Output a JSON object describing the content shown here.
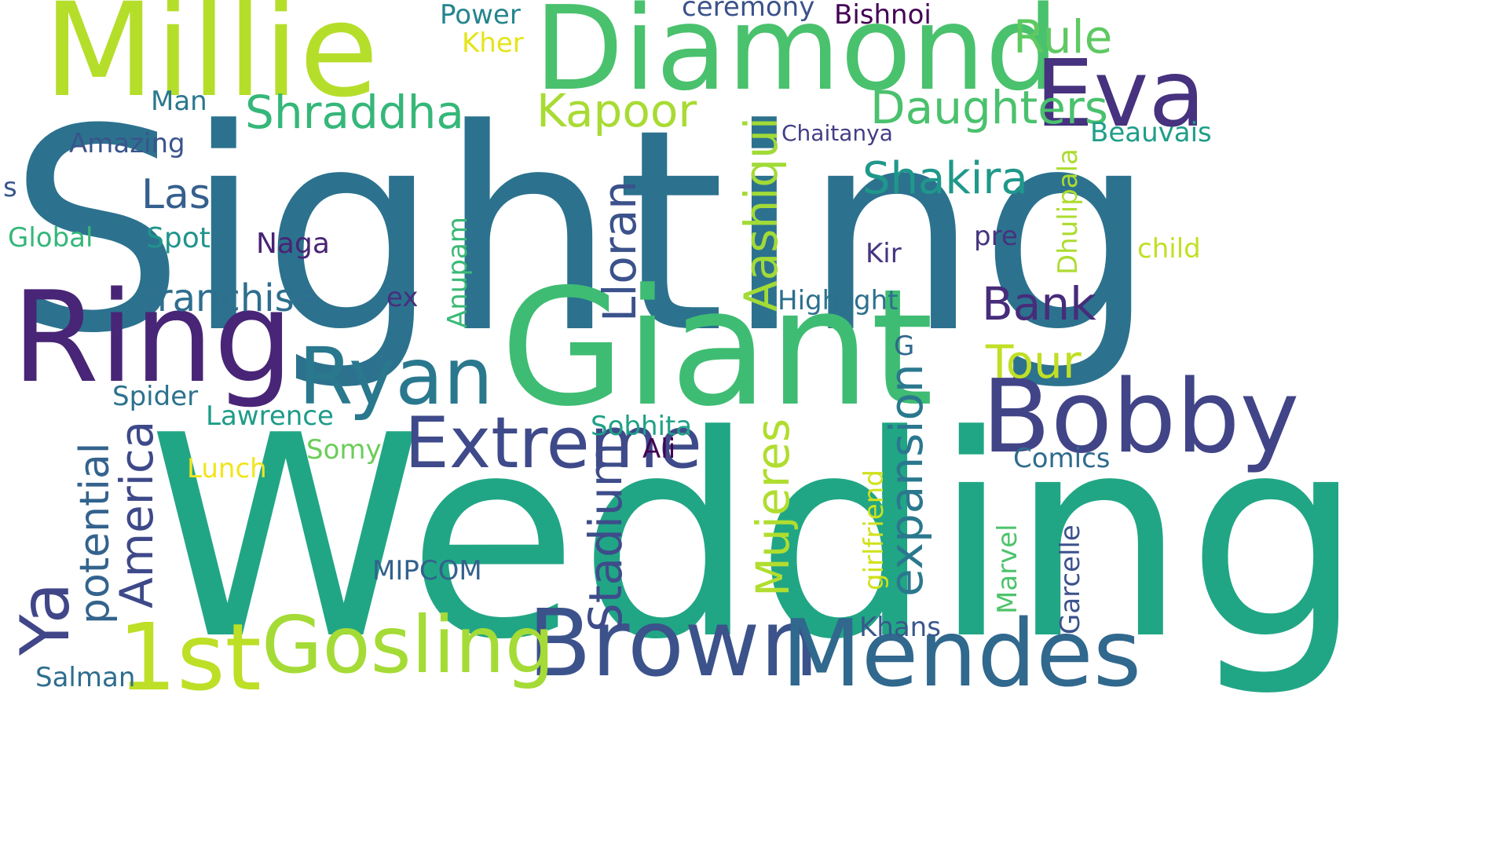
{
  "words": [
    {
      "id": "sighting",
      "text": "Sighting",
      "color": "#2c728e"
    },
    {
      "id": "wedding",
      "text": "Wedding",
      "color": "#21a685"
    },
    {
      "id": "giant",
      "text": "Giant",
      "color": "#3fbc73"
    },
    {
      "id": "millie",
      "text": "Millie",
      "color": "#b5de2b"
    },
    {
      "id": "diamond",
      "text": "Diamond",
      "color": "#4ac16d"
    },
    {
      "id": "ring",
      "text": "Ring",
      "color": "#482576"
    },
    {
      "id": "bobby",
      "text": "Bobby",
      "color": "#414487"
    },
    {
      "id": "eva",
      "text": "Eva",
      "color": "#46327e"
    },
    {
      "id": "brown",
      "text": "Brown",
      "color": "#3b528b"
    },
    {
      "id": "mendes",
      "text": "Mendes",
      "color": "#31688e"
    },
    {
      "id": "gosling",
      "text": "Gosling",
      "color": "#a5db36"
    },
    {
      "id": "first",
      "text": "1st",
      "color": "#bddf26"
    },
    {
      "id": "ryan",
      "text": "Ryan",
      "color": "#2a788e"
    },
    {
      "id": "extreme",
      "text": "Extreme",
      "color": "#404688"
    },
    {
      "id": "rule",
      "text": "Rule",
      "color": "#3e4a89"
    },
    {
      "id": "shraddha",
      "text": "Shraddha",
      "color": "#5ec962"
    },
    {
      "id": "daughters",
      "text": "Daughters",
      "color": "#35b779"
    },
    {
      "id": "kapoor",
      "text": "Kapoor",
      "color": "#4ac16d"
    },
    {
      "id": "bank",
      "text": "Bank",
      "color": "#a8db34"
    },
    {
      "id": "tour",
      "text": "Tour",
      "color": "#472c7a"
    },
    {
      "id": "franchise",
      "text": "franchise",
      "color": "#c0df25"
    },
    {
      "id": "shakira",
      "text": "Shakira",
      "color": "#2e6e8e"
    },
    {
      "id": "las",
      "text": "Las",
      "color": "#1f988b"
    },
    {
      "id": "ya",
      "text": "Ya",
      "color": "#355f8d"
    },
    {
      "id": "stadium",
      "text": "Stadium",
      "color": "#3e4c8a"
    },
    {
      "id": "lloran",
      "text": "Lloran",
      "color": "#3b528b"
    },
    {
      "id": "aashiqui",
      "text": "Aashiqui",
      "color": "#a2da37"
    },
    {
      "id": "mujeres",
      "text": "Mujeres",
      "color": "#b0dd2f"
    },
    {
      "id": "expansion",
      "text": "expansion",
      "color": "#2a788e"
    },
    {
      "id": "america",
      "text": "America",
      "color": "#3e4989"
    },
    {
      "id": "potential",
      "text": "potential",
      "color": "#33638d"
    },
    {
      "id": "beauvais",
      "text": "Beauvais",
      "color": "#1f9e89"
    },
    {
      "id": "highlight",
      "text": "Highlight",
      "color": "#2d708e"
    },
    {
      "id": "chaitanya",
      "text": "Chaitanya",
      "color": "#433e85"
    },
    {
      "id": "amazing",
      "text": "Amazing",
      "color": "#3a548c"
    },
    {
      "id": "global",
      "text": "Global",
      "color": "#35b779"
    },
    {
      "id": "spot",
      "text": "Spot",
      "color": "#1f958b"
    },
    {
      "id": "naga",
      "text": "Naga",
      "color": "#482475"
    },
    {
      "id": "anupam",
      "text": "Anupam",
      "color": "#3aba76"
    },
    {
      "id": "dhulipala",
      "text": "Dhulipala",
      "color": "#addc30"
    },
    {
      "id": "child",
      "text": "child",
      "color": "#c2df23"
    },
    {
      "id": "pre",
      "text": "pre",
      "color": "#46337f"
    },
    {
      "id": "kir",
      "text": "Kir",
      "color": "#453581"
    },
    {
      "id": "g",
      "text": "G",
      "color": "#31688e"
    },
    {
      "id": "power",
      "text": "Power",
      "color": "#25858e"
    },
    {
      "id": "kher",
      "text": "Kher",
      "color": "#e5e419"
    },
    {
      "id": "ceremony",
      "text": "ceremony",
      "color": "#3b528b"
    },
    {
      "id": "bishnoi",
      "text": "Bishnoi",
      "color": "#440154"
    },
    {
      "id": "man",
      "text": "Man",
      "color": "#2a778e"
    },
    {
      "id": "s",
      "text": "s",
      "color": "#39568c"
    },
    {
      "id": "ex",
      "text": "ex",
      "color": "#46307e"
    },
    {
      "id": "spider",
      "text": "Spider",
      "color": "#2c728e"
    },
    {
      "id": "lawrence",
      "text": "Lawrence",
      "color": "#1e9c89"
    },
    {
      "id": "somy",
      "text": "Somy",
      "color": "#6ccd5a"
    },
    {
      "id": "lunch",
      "text": "Lunch",
      "color": "#f1e51d"
    },
    {
      "id": "sobhita",
      "text": "Sobhita",
      "color": "#1fa187"
    },
    {
      "id": "ali",
      "text": "Ali",
      "color": "#440154"
    },
    {
      "id": "comics",
      "text": "Comics",
      "color": "#2f6c8e"
    },
    {
      "id": "mipcom",
      "text": "MIPCOM",
      "color": "#33628d"
    },
    {
      "id": "girlfriend",
      "text": "girlfriend",
      "color": "#d0e11c"
    },
    {
      "id": "marvel",
      "text": "Marvel",
      "color": "#4ec36b"
    },
    {
      "id": "garcelle",
      "text": "Garcelle",
      "color": "#3b528b"
    },
    {
      "id": "khans",
      "text": "Khans",
      "color": "#38588c"
    },
    {
      "id": "salman",
      "text": "Salman",
      "color": "#2e6d8e"
    }
  ]
}
